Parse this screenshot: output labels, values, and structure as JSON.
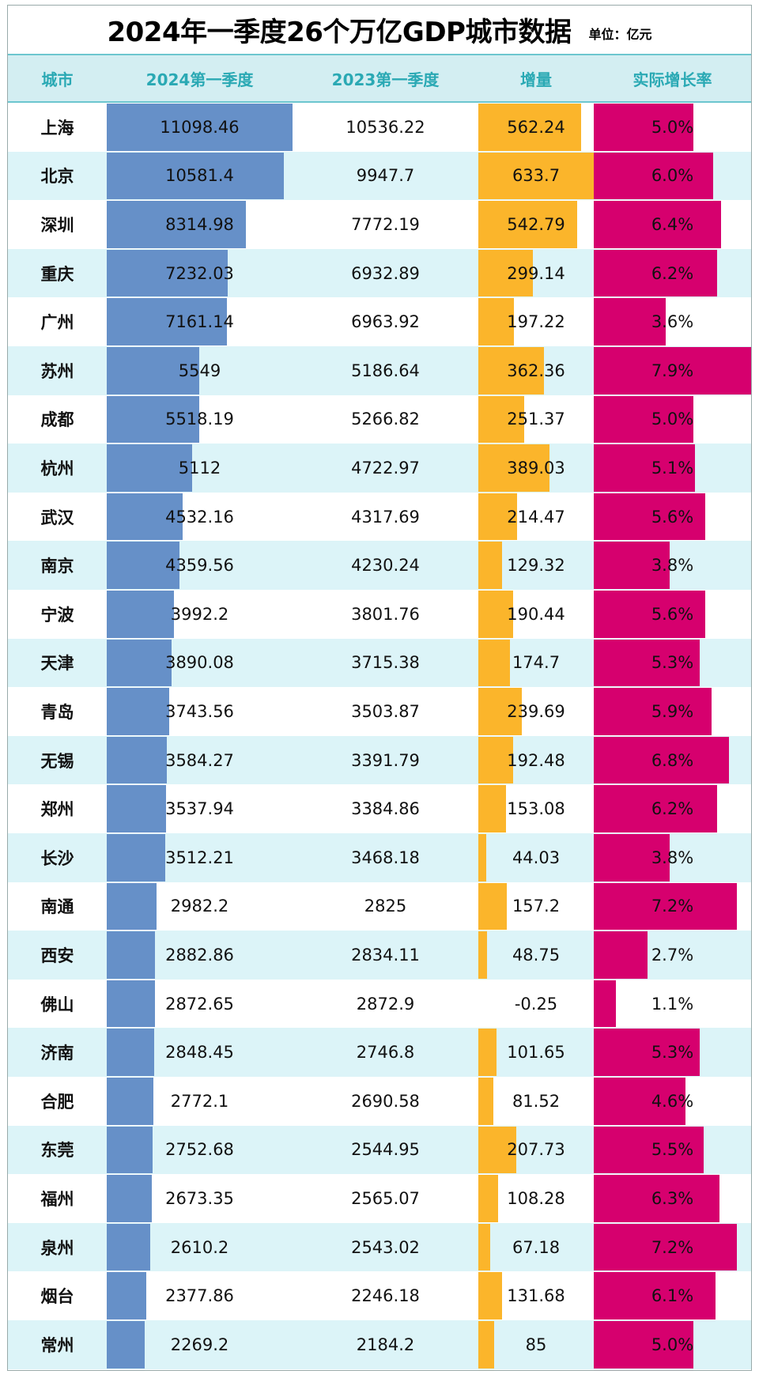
{
  "title": "2024年一季度26个万亿GDP城市数据",
  "unit": "单位：亿元",
  "chart_data": {
    "type": "table",
    "title": "2024年一季度26个万亿GDP城市数据",
    "columns": [
      "城市",
      "2024第一季度",
      "2023第一季度",
      "增量",
      "实际增长率"
    ],
    "colors": {
      "q2024_bar": "#6690c8",
      "increase_bar": "#fbb52b",
      "growth_bar": "#d6006e",
      "header_bg": "#d3eef2",
      "header_text": "#2aa9b4",
      "alt_row": "#dcf4f8"
    },
    "rows": [
      {
        "city": "上海",
        "q2024": "11098.46",
        "q2023": "10536.22",
        "increase": "562.24",
        "growth": "5.0%"
      },
      {
        "city": "北京",
        "q2024": "10581.4",
        "q2023": "9947.7",
        "increase": "633.7",
        "growth": "6.0%"
      },
      {
        "city": "深圳",
        "q2024": "8314.98",
        "q2023": "7772.19",
        "increase": "542.79",
        "growth": "6.4%"
      },
      {
        "city": "重庆",
        "q2024": "7232.03",
        "q2023": "6932.89",
        "increase": "299.14",
        "growth": "6.2%"
      },
      {
        "city": "广州",
        "q2024": "7161.14",
        "q2023": "6963.92",
        "increase": "197.22",
        "growth": "3.6%"
      },
      {
        "city": "苏州",
        "q2024": "5549",
        "q2023": "5186.64",
        "increase": "362.36",
        "growth": "7.9%"
      },
      {
        "city": "成都",
        "q2024": "5518.19",
        "q2023": "5266.82",
        "increase": "251.37",
        "growth": "5.0%"
      },
      {
        "city": "杭州",
        "q2024": "5112",
        "q2023": "4722.97",
        "increase": "389.03",
        "growth": "5.1%"
      },
      {
        "city": "武汉",
        "q2024": "4532.16",
        "q2023": "4317.69",
        "increase": "214.47",
        "growth": "5.6%"
      },
      {
        "city": "南京",
        "q2024": "4359.56",
        "q2023": "4230.24",
        "increase": "129.32",
        "growth": "3.8%"
      },
      {
        "city": "宁波",
        "q2024": "3992.2",
        "q2023": "3801.76",
        "increase": "190.44",
        "growth": "5.6%"
      },
      {
        "city": "天津",
        "q2024": "3890.08",
        "q2023": "3715.38",
        "increase": "174.7",
        "growth": "5.3%"
      },
      {
        "city": "青岛",
        "q2024": "3743.56",
        "q2023": "3503.87",
        "increase": "239.69",
        "growth": "5.9%"
      },
      {
        "city": "无锡",
        "q2024": "3584.27",
        "q2023": "3391.79",
        "increase": "192.48",
        "growth": "6.8%"
      },
      {
        "city": "郑州",
        "q2024": "3537.94",
        "q2023": "3384.86",
        "increase": "153.08",
        "growth": "6.2%"
      },
      {
        "city": "长沙",
        "q2024": "3512.21",
        "q2023": "3468.18",
        "increase": "44.03",
        "growth": "3.8%"
      },
      {
        "city": "南通",
        "q2024": "2982.2",
        "q2023": "2825",
        "increase": "157.2",
        "growth": "7.2%"
      },
      {
        "city": "西安",
        "q2024": "2882.86",
        "q2023": "2834.11",
        "increase": "48.75",
        "growth": "2.7%"
      },
      {
        "city": "佛山",
        "q2024": "2872.65",
        "q2023": "2872.9",
        "increase": "-0.25",
        "growth": "1.1%"
      },
      {
        "city": "济南",
        "q2024": "2848.45",
        "q2023": "2746.8",
        "increase": "101.65",
        "growth": "5.3%"
      },
      {
        "city": "合肥",
        "q2024": "2772.1",
        "q2023": "2690.58",
        "increase": "81.52",
        "growth": "4.6%"
      },
      {
        "city": "东莞",
        "q2024": "2752.68",
        "q2023": "2544.95",
        "increase": "207.73",
        "growth": "5.5%"
      },
      {
        "city": "福州",
        "q2024": "2673.35",
        "q2023": "2565.07",
        "increase": "108.28",
        "growth": "6.3%"
      },
      {
        "city": "泉州",
        "q2024": "2610.2",
        "q2023": "2543.02",
        "increase": "67.18",
        "growth": "7.2%"
      },
      {
        "city": "烟台",
        "q2024": "2377.86",
        "q2023": "2246.18",
        "increase": "131.68",
        "growth": "6.1%"
      },
      {
        "city": "常州",
        "q2024": "2269.2",
        "q2023": "2184.2",
        "increase": "85",
        "growth": "5.0%"
      }
    ]
  }
}
